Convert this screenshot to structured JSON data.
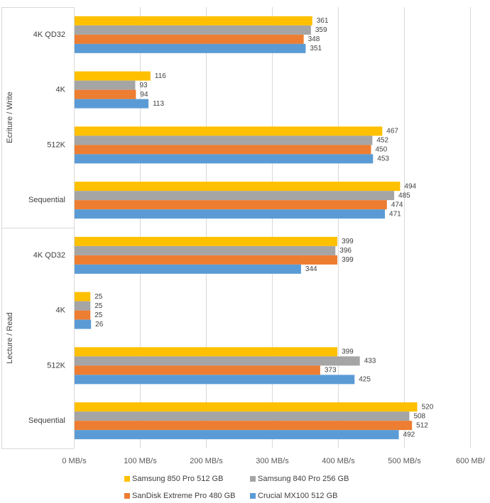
{
  "chart_data": {
    "type": "bar",
    "orientation": "horizontal",
    "title": "",
    "xlabel": "",
    "ylabel": "",
    "xlim": [
      0,
      600
    ],
    "x_ticks": [
      0,
      100,
      200,
      300,
      400,
      500,
      600
    ],
    "x_tick_labels": [
      "0 MB/s",
      "100 MB/s",
      "200 MB/s",
      "300 MB/s",
      "400 MB/s",
      "500 MB/s",
      "600 MB/"
    ],
    "grid": true,
    "legend_position": "bottom",
    "groups": [
      {
        "label": "Ecriture / Write",
        "categories": [
          "4K QD32",
          "4K",
          "512K",
          "Sequential"
        ]
      },
      {
        "label": "Lecture / Read",
        "categories": [
          "4K QD32",
          "4K",
          "512K",
          "Sequential"
        ]
      }
    ],
    "series": [
      {
        "name": "Samsung 850 Pro 512 GB",
        "color": "#FFC000",
        "values": [
          361,
          116,
          467,
          494,
          399,
          25,
          399,
          520
        ]
      },
      {
        "name": "Samsung 840 Pro 256 GB",
        "color": "#A5A5A5",
        "values": [
          359,
          93,
          452,
          485,
          396,
          25,
          433,
          508
        ]
      },
      {
        "name": "SanDisk Extreme Pro 480 GB",
        "color": "#ED7D31",
        "values": [
          348,
          94,
          450,
          474,
          399,
          25,
          373,
          512
        ]
      },
      {
        "name": "Crucial MX100 512 GB",
        "color": "#5B9BD5",
        "values": [
          351,
          113,
          453,
          471,
          344,
          26,
          425,
          492
        ]
      }
    ]
  }
}
